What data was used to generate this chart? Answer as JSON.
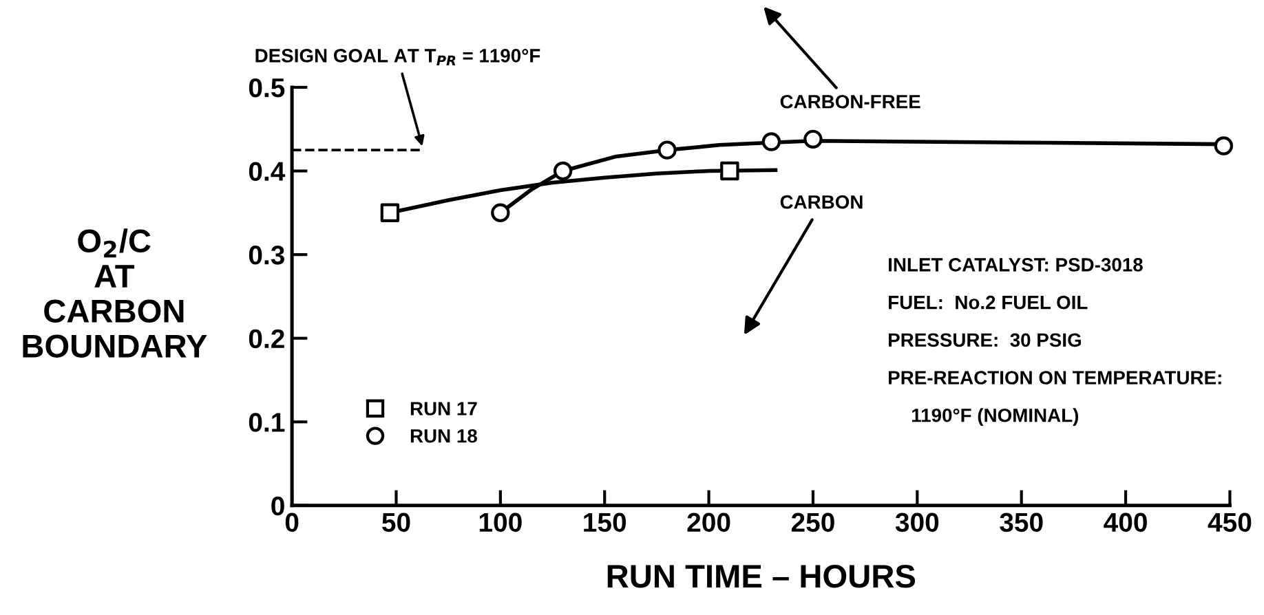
{
  "chart_data": {
    "type": "scatter",
    "xlabel": "RUN TIME – HOURS",
    "ylabel": "O$_{2}$/C\nAT\nCARBON\nBOUNDARY",
    "xlim": [
      0,
      450
    ],
    "ylim": [
      0,
      0.5
    ],
    "xticks": [
      0,
      50,
      100,
      150,
      200,
      250,
      300,
      350,
      400,
      450
    ],
    "yticks": [
      0,
      0.1,
      0.2,
      0.3,
      0.4,
      0.5
    ],
    "grid": false,
    "legend": "bottom left",
    "series": [
      {
        "name": "RUN 17",
        "marker": "square",
        "color": "#000000",
        "x": [
          47,
          210
        ],
        "values": [
          0.35,
          0.4
        ]
      },
      {
        "name": "RUN 18",
        "marker": "circle",
        "color": "#000000",
        "x": [
          100,
          130,
          180,
          230,
          250,
          447
        ],
        "values": [
          0.35,
          0.4,
          0.425,
          0.435,
          0.438,
          0.43
        ]
      },
      {
        "type": "line",
        "color": "#000000",
        "x": [
          47,
          75,
          100,
          125,
          150,
          175,
          200,
          232
        ],
        "values": [
          0.35,
          0.365,
          0.377,
          0.386,
          0.392,
          0.397,
          0.4,
          0.401
        ]
      },
      {
        "type": "line",
        "color": "#000000",
        "x": [
          100,
          115,
          130,
          155,
          180,
          205,
          230,
          250,
          350,
          447
        ],
        "values": [
          0.35,
          0.378,
          0.4,
          0.417,
          0.425,
          0.431,
          0.434,
          0.436,
          0.434,
          0.432
        ]
      }
    ],
    "ref_lines": [
      {
        "axis": "y",
        "value": 0.425,
        "line_style": "dashed",
        "color": "#000000"
      }
    ],
    "annotations": [
      "DESIGN GOAL AT T$_{PR}$ = 1190°F",
      "CARBON-FREE",
      "CARBON",
      "INLET CATALYST: PSD-3018",
      "FUEL:  No.2 FUEL OIL",
      "PRESSURE:  30 PSIG",
      "PRE-REACTION ON TEMPERATURE:",
      "1190°F (NOMINAL)"
    ]
  }
}
